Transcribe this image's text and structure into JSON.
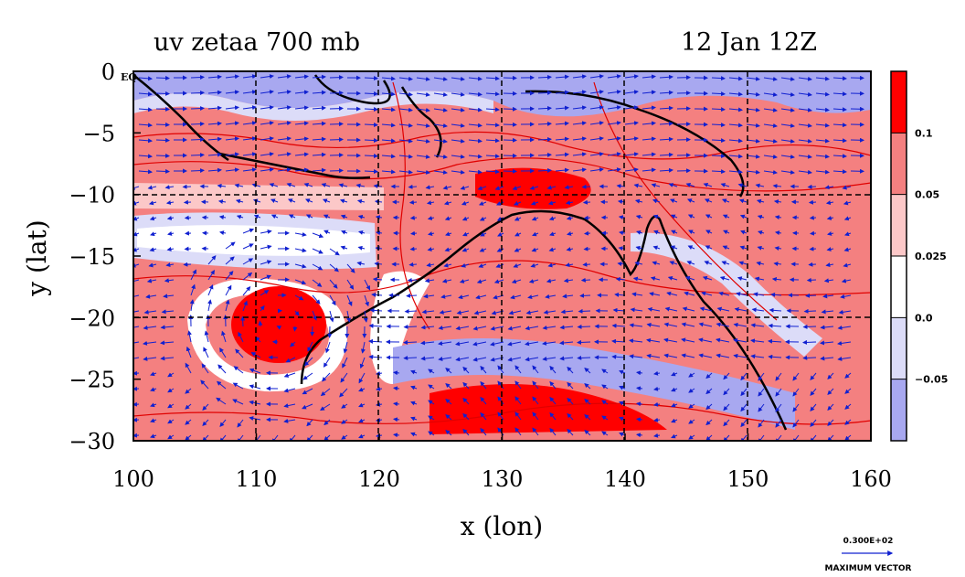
{
  "title_left": "uv zetaa 700 mb",
  "title_right": "12 Jan 12Z",
  "equator_label": "EQ",
  "max_vector_value": "0.300E+02",
  "max_vector_label": "MAXIMUM VECTOR",
  "colors": {
    "strong_positive": "#ff0000",
    "positive": "#f48080",
    "weak_positive": "#fcc8c8",
    "neutral": "#ffffff",
    "weak_negative": "#dcdcf8",
    "negative": "#a8a8f0",
    "vector": "#1020d0",
    "contour": "#e00000",
    "coast": "#000000"
  },
  "chart_data": {
    "type": "heatmap",
    "title": "uv zetaa 700 mb",
    "subtitle": "12 Jan 12Z",
    "xlabel": "x (lon)",
    "ylabel": "y (lat)",
    "xlim": [
      100,
      160
    ],
    "ylim": [
      -30,
      0
    ],
    "x_ticks": [
      "100",
      "110",
      "120",
      "130",
      "140",
      "150",
      "160"
    ],
    "y_ticks": [
      "0",
      "−5",
      "−10",
      "−15",
      "−20",
      "−25",
      "−30"
    ],
    "grid": true,
    "colorbar": {
      "position": "right",
      "levels": [
        "0.1",
        "0.05",
        "0.025",
        "0.0",
        "−0.05"
      ]
    },
    "overlay": "wind vectors"
  }
}
